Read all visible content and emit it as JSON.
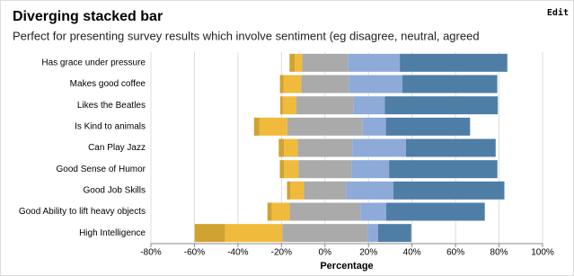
{
  "toolbar": {
    "edit": "Edit"
  },
  "chart_data": {
    "type": "diverging-stacked-bar",
    "title": "Diverging stacked bar",
    "subtitle": "Perfect for presenting survey results which involve sentiment (eg disagree, neutral, agreed",
    "x_label": "Percentage",
    "categories": [
      "Has grace under pressure",
      "Makes good coffee",
      "Likes the Beatles",
      "Is Kind to animals",
      "Can Play Jazz",
      "Good Sense of Humor",
      "Good Job Skills",
      "Good Ability to lift heavy objects",
      "High Intelligence"
    ],
    "series": [
      {
        "color": "#d0a22f",
        "values": [
          2.5,
          1.6,
          1.2,
          2.5,
          2.5,
          2,
          1.6,
          2,
          14
        ]
      },
      {
        "color": "#f0bb3c",
        "values": [
          3.3,
          8.2,
          6.2,
          12.8,
          6.2,
          6.6,
          6.2,
          8.2,
          26.3
        ]
      },
      {
        "color": "#aaaaaa",
        "values": [
          21,
          21.8,
          26.3,
          34.6,
          25.1,
          24.3,
          19.3,
          32.5,
          39.1
        ]
      },
      {
        "color": "#8eaad8",
        "values": [
          23.9,
          24.7,
          14.4,
          10.7,
          24.7,
          17.3,
          21.8,
          11.9,
          4.9
        ]
      },
      {
        "color": "#4e7ea6",
        "values": [
          49.4,
          43.6,
          51.9,
          38.7,
          41.2,
          49.8,
          51,
          45.3,
          15.2
        ]
      }
    ],
    "neutral_series": 2,
    "xlim": [
      -80,
      100
    ],
    "xticks": [
      {
        "value": -80,
        "label": "-80%"
      },
      {
        "value": -60,
        "label": "-60%"
      },
      {
        "value": -40,
        "label": "-40%"
      },
      {
        "value": -20,
        "label": "-20%"
      },
      {
        "value": 0,
        "label": "0%"
      },
      {
        "value": 20,
        "label": "20%"
      },
      {
        "value": 40,
        "label": "40%"
      },
      {
        "value": 60,
        "label": "60%"
      },
      {
        "value": 80,
        "label": "80%"
      },
      {
        "value": 100,
        "label": "100%"
      }
    ],
    "grid": true
  }
}
